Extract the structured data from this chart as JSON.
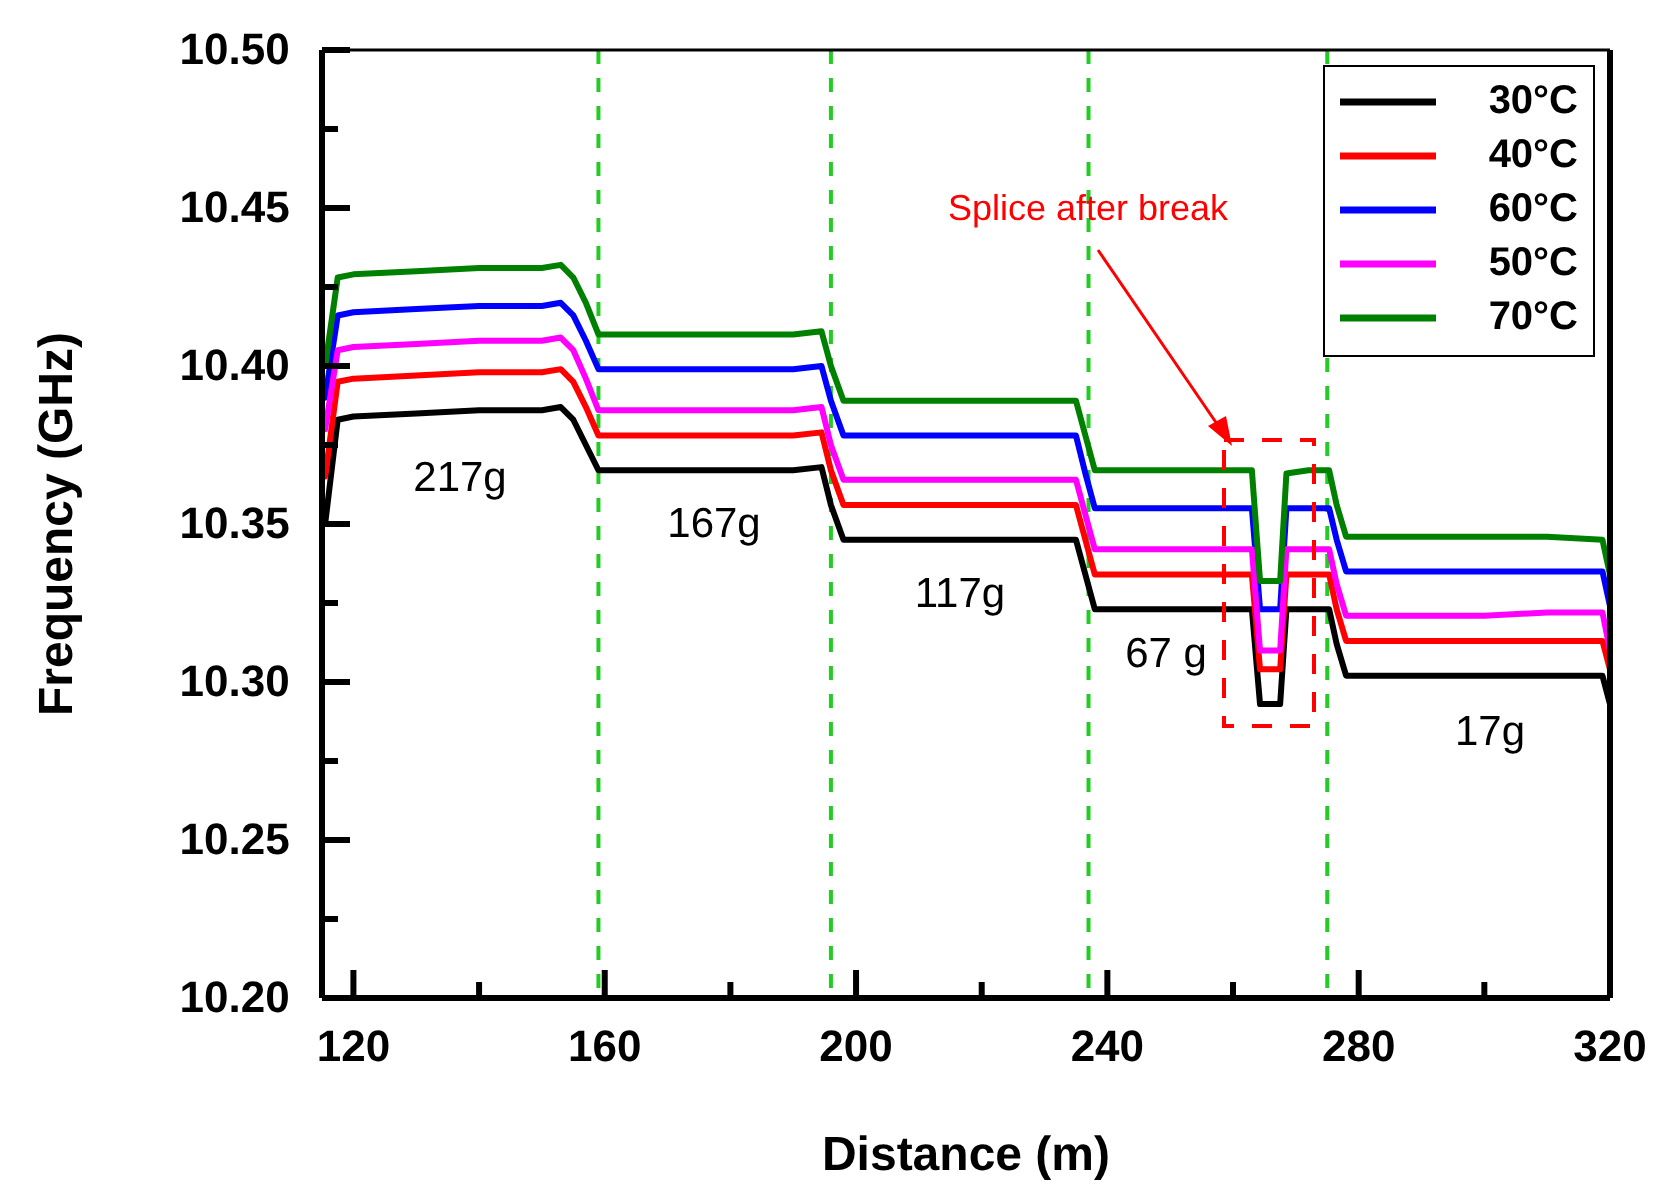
{
  "chart_data": {
    "type": "line",
    "xlabel": "Distance (m)",
    "ylabel": "Frequency (GHz)",
    "x": [
      115.5,
      117.5,
      120,
      130,
      140,
      150,
      153,
      155,
      157,
      159,
      170,
      180,
      190,
      194.5,
      196,
      198,
      205,
      215,
      225,
      235,
      236.5,
      238,
      250,
      260,
      263,
      264.3,
      267.5,
      268.5,
      272,
      275.3,
      276.5,
      278,
      290,
      300,
      310,
      318.8,
      320
    ],
    "series": [
      {
        "name": "30°C",
        "color": "#000000",
        "values": [
          10.35,
          10.383,
          10.384,
          10.385,
          10.386,
          10.386,
          10.387,
          10.383,
          10.375,
          10.367,
          10.367,
          10.367,
          10.367,
          10.368,
          10.356,
          10.345,
          10.345,
          10.345,
          10.345,
          10.345,
          10.334,
          10.323,
          10.323,
          10.323,
          10.323,
          10.293,
          10.293,
          10.323,
          10.323,
          10.323,
          10.312,
          10.302,
          10.302,
          10.302,
          10.302,
          10.302,
          10.293
        ]
      },
      {
        "name": "40°C",
        "color": "#ff0000",
        "values": [
          10.365,
          10.395,
          10.396,
          10.397,
          10.398,
          10.398,
          10.399,
          10.395,
          10.387,
          10.378,
          10.378,
          10.378,
          10.378,
          10.379,
          10.367,
          10.356,
          10.356,
          10.356,
          10.356,
          10.356,
          10.345,
          10.334,
          10.334,
          10.334,
          10.334,
          10.304,
          10.304,
          10.334,
          10.334,
          10.334,
          10.323,
          10.313,
          10.313,
          10.313,
          10.313,
          10.313,
          10.304
        ]
      },
      {
        "name": "60°C",
        "color": "#0000ff",
        "values": [
          10.39,
          10.416,
          10.417,
          10.418,
          10.419,
          10.419,
          10.42,
          10.416,
          10.408,
          10.399,
          10.399,
          10.399,
          10.399,
          10.4,
          10.389,
          10.378,
          10.378,
          10.378,
          10.378,
          10.378,
          10.366,
          10.355,
          10.355,
          10.355,
          10.355,
          10.323,
          10.323,
          10.355,
          10.355,
          10.355,
          10.345,
          10.335,
          10.335,
          10.335,
          10.335,
          10.335,
          10.324
        ]
      },
      {
        "name": "50°C",
        "color": "#ff00ff",
        "values": [
          10.38,
          10.405,
          10.406,
          10.407,
          10.408,
          10.408,
          10.409,
          10.405,
          10.396,
          10.386,
          10.386,
          10.386,
          10.386,
          10.387,
          10.375,
          10.364,
          10.364,
          10.364,
          10.364,
          10.364,
          10.353,
          10.342,
          10.342,
          10.342,
          10.342,
          10.31,
          10.31,
          10.342,
          10.342,
          10.342,
          10.331,
          10.321,
          10.321,
          10.321,
          10.322,
          10.322,
          10.31
        ]
      },
      {
        "name": "70°C",
        "color": "#008000",
        "values": [
          10.4,
          10.428,
          10.429,
          10.43,
          10.431,
          10.431,
          10.432,
          10.428,
          10.42,
          10.41,
          10.41,
          10.41,
          10.41,
          10.411,
          10.4,
          10.389,
          10.389,
          10.389,
          10.389,
          10.389,
          10.378,
          10.367,
          10.367,
          10.367,
          10.367,
          10.332,
          10.332,
          10.366,
          10.367,
          10.367,
          10.356,
          10.346,
          10.346,
          10.346,
          10.346,
          10.345,
          10.334
        ]
      }
    ],
    "xlim": [
      115,
      320
    ],
    "xticks": [
      120,
      {
        "value": 140,
        "label": null
      },
      160,
      {
        "value": 180,
        "label": null
      },
      200,
      {
        "value": 220,
        "label": null
      },
      240,
      {
        "value": 260,
        "label": null
      },
      280,
      {
        "value": 300,
        "label": null
      },
      320
    ],
    "ylim": [
      10.2,
      10.5
    ],
    "yticks": [
      {
        "value": 10.2,
        "label": "10.20"
      },
      {
        "value": 10.225,
        "label": null
      },
      {
        "value": 10.25,
        "label": "10.25"
      },
      {
        "value": 10.275,
        "label": null
      },
      {
        "value": 10.3,
        "label": "10.30"
      },
      {
        "value": 10.325,
        "label": null
      },
      {
        "value": 10.35,
        "label": "10.35"
      },
      {
        "value": 10.375,
        "label": null
      },
      {
        "value": 10.4,
        "label": "10.40"
      },
      {
        "value": 10.425,
        "label": null
      },
      {
        "value": 10.45,
        "label": "10.45"
      },
      {
        "value": 10.475,
        "label": null
      },
      {
        "value": 10.5,
        "label": "10.50"
      }
    ],
    "ref_lines": [
      {
        "axis": "x",
        "value": 159,
        "color": "#22cc22",
        "line_style": "dashed"
      },
      {
        "axis": "x",
        "value": 196,
        "color": "#22cc22",
        "line_style": "dashed"
      },
      {
        "axis": "x",
        "value": 237,
        "color": "#22cc22",
        "line_style": "dashed"
      },
      {
        "axis": "x",
        "value": 275,
        "color": "#22cc22",
        "line_style": "dashed"
      }
    ],
    "annotations": [
      "217g",
      "167g",
      "117g",
      "67 g",
      "17g",
      "Splice after break"
    ],
    "legend": "top right",
    "grid": false,
    "marker": "none",
    "line_style": "solid"
  }
}
